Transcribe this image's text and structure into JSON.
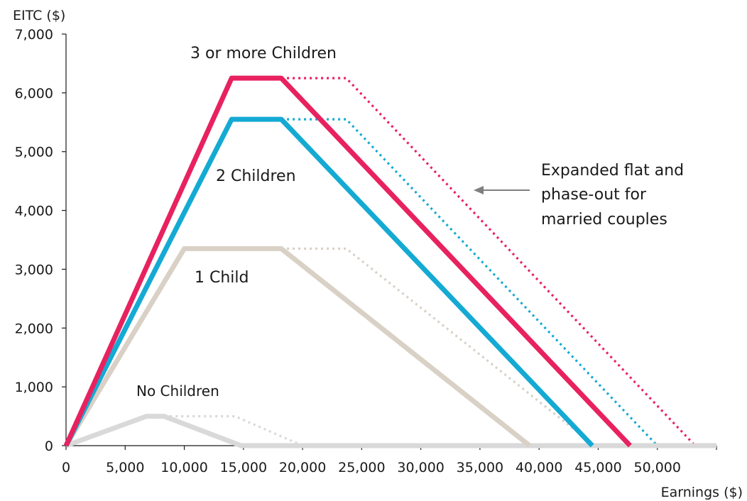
{
  "chart_data": {
    "type": "line",
    "title": "",
    "ylabel": "EITC ($)",
    "xlabel": "Earnings ($)",
    "xlim": [
      0,
      55000
    ],
    "ylim": [
      0,
      7000
    ],
    "x_ticks": [
      0,
      5000,
      10000,
      15000,
      20000,
      25000,
      30000,
      35000,
      40000,
      45000,
      50000
    ],
    "x_tick_labels": [
      "0",
      "5,000",
      "10,000",
      "15,000",
      "20,000",
      "25,000",
      "30,000",
      "35,000",
      "40,000",
      "45,000",
      "50,000"
    ],
    "y_ticks": [
      0,
      1000,
      2000,
      3000,
      4000,
      5000,
      6000,
      7000
    ],
    "y_tick_labels": [
      "0",
      "1,000",
      "2,000",
      "3,000",
      "4,000",
      "5,000",
      "6,000",
      "7,000"
    ],
    "grid": false,
    "series": [
      {
        "name": "3 or more Children",
        "color": "#e8215f",
        "style": "solid",
        "x": [
          0,
          14000,
          18200,
          47700
        ],
        "y": [
          0,
          6250,
          6250,
          0
        ]
      },
      {
        "name": "2 Children",
        "color": "#14aad3",
        "style": "solid",
        "x": [
          0,
          14000,
          18200,
          44500
        ],
        "y": [
          0,
          5550,
          5550,
          0
        ]
      },
      {
        "name": "1 Child",
        "color": "#d9d1c6",
        "style": "solid",
        "x": [
          0,
          10000,
          18200,
          39200
        ],
        "y": [
          0,
          3350,
          3350,
          0
        ]
      },
      {
        "name": "No Children",
        "color": "#d9d9d9",
        "style": "solid",
        "x": [
          0,
          6800,
          8300,
          14800,
          55000
        ],
        "y": [
          0,
          500,
          500,
          0,
          0
        ]
      },
      {
        "name": "3 or more Children (married)",
        "color": "#e8215f",
        "style": "dotted",
        "x": [
          18200,
          23700,
          53200,
          55000
        ],
        "y": [
          6250,
          6250,
          0,
          0
        ]
      },
      {
        "name": "2 Children (married)",
        "color": "#14aad3",
        "style": "dotted",
        "x": [
          18200,
          23700,
          50000
        ],
        "y": [
          5550,
          5550,
          0
        ]
      },
      {
        "name": "1 Child (married)",
        "color": "#d9d1c6",
        "style": "dotted",
        "x": [
          18200,
          23700,
          44700
        ],
        "y": [
          3350,
          3350,
          0
        ]
      },
      {
        "name": "No Children (married)",
        "color": "#d9d9d9",
        "style": "dotted",
        "x": [
          8300,
          14300,
          20000
        ],
        "y": [
          500,
          500,
          0
        ]
      }
    ],
    "labels": {
      "three_plus": "3 or more Children",
      "two": "2 Children",
      "one": "1 Child",
      "none": "No Children"
    },
    "annotation": {
      "lines": [
        "Expanded flat and",
        "phase-out for",
        "married couples"
      ],
      "arrow_color": "#7f7f7f"
    }
  }
}
